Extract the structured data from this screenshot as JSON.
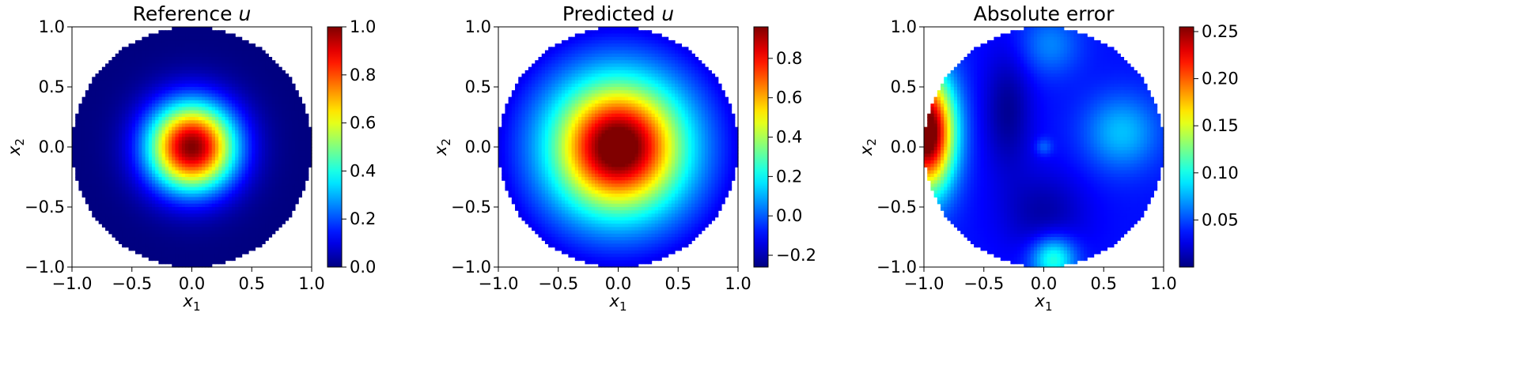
{
  "chart_data": [
    {
      "type": "heatmap",
      "field": "reference",
      "title_main": "Reference ",
      "title_var": "u",
      "xlabel_base": "x",
      "xlabel_sub": "1",
      "ylabel_base": "x",
      "ylabel_sub": "2",
      "xlim": [
        -1.0,
        1.0
      ],
      "ylim": [
        -1.0,
        1.0
      ],
      "xticks": [
        "−1.0",
        "−0.5",
        "0.0",
        "0.5",
        "1.0"
      ],
      "yticks": [
        "−1.0",
        "−0.5",
        "0.0",
        "0.5",
        "1.0"
      ],
      "colorbar": {
        "range": [
          0.0,
          1.0
        ],
        "ticks": [
          0.0,
          0.2,
          0.4,
          0.6,
          0.8,
          1.0
        ],
        "tick_labels": [
          "0.0",
          "0.2",
          "0.4",
          "0.6",
          "0.8",
          "1.0"
        ]
      },
      "domain": "unit disk",
      "colormap": "jet"
    },
    {
      "type": "heatmap",
      "field": "predicted",
      "title_main": "Predicted ",
      "title_var": "u",
      "xlabel_base": "x",
      "xlabel_sub": "1",
      "ylabel_base": "x",
      "ylabel_sub": "2",
      "xlim": [
        -1.0,
        1.0
      ],
      "ylim": [
        -1.0,
        1.0
      ],
      "xticks": [
        "−1.0",
        "−0.5",
        "0.0",
        "0.5",
        "1.0"
      ],
      "yticks": [
        "−1.0",
        "−0.5",
        "0.0",
        "0.5",
        "1.0"
      ],
      "colorbar": {
        "range": [
          -0.26,
          0.96
        ],
        "ticks": [
          -0.2,
          0.0,
          0.2,
          0.4,
          0.6,
          0.8
        ],
        "tick_labels": [
          "−0.2",
          "0.0",
          "0.2",
          "0.4",
          "0.6",
          "0.8"
        ]
      },
      "domain": "unit disk",
      "colormap": "jet"
    },
    {
      "type": "heatmap",
      "field": "error",
      "title_main": "Absolute error",
      "title_var": "",
      "xlabel_base": "x",
      "xlabel_sub": "1",
      "ylabel_base": "x",
      "ylabel_sub": "2",
      "xlim": [
        -1.0,
        1.0
      ],
      "ylim": [
        -1.0,
        1.0
      ],
      "xticks": [
        "−1.0",
        "−0.5",
        "0.0",
        "0.5",
        "1.0"
      ],
      "yticks": [
        "−1.0",
        "−0.5",
        "0.0",
        "0.5",
        "1.0"
      ],
      "colorbar": {
        "range": [
          0.0,
          0.255
        ],
        "ticks": [
          0.05,
          0.1,
          0.15,
          0.2,
          0.25
        ],
        "tick_labels": [
          "0.05",
          "0.10",
          "0.15",
          "0.20",
          "0.25"
        ]
      },
      "domain": "unit disk",
      "colormap": "jet"
    }
  ]
}
